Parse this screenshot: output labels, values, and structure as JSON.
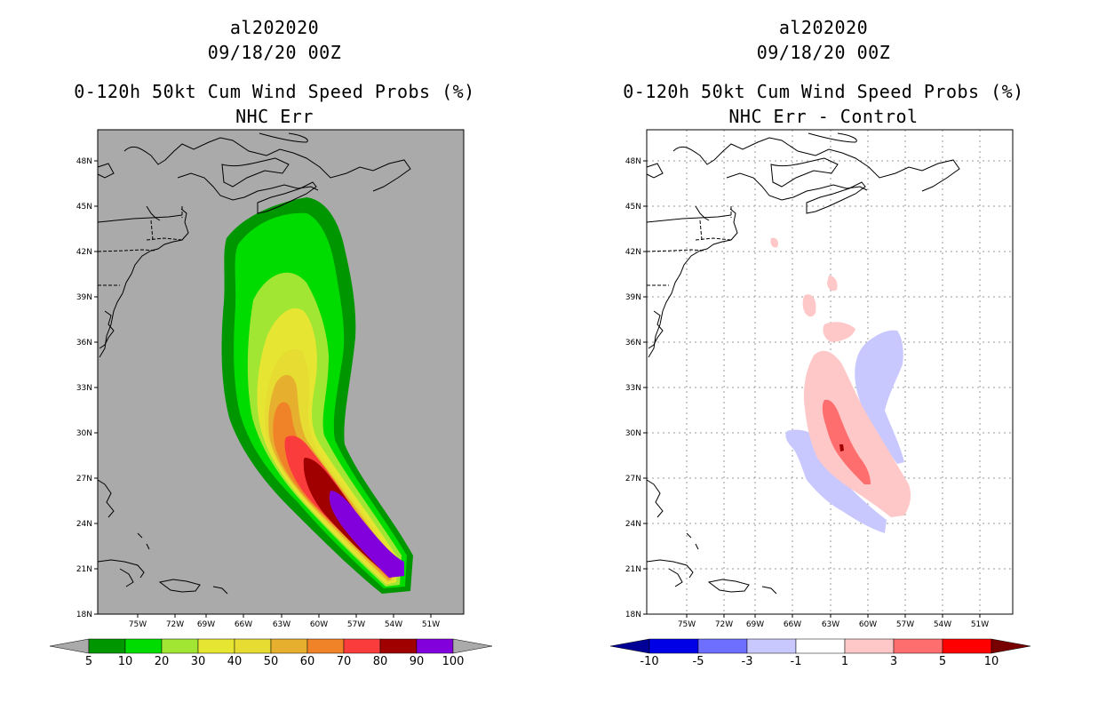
{
  "panels": [
    {
      "id": "left",
      "storm": "al202020",
      "datetime": "09/18/20 00Z",
      "title": "0-120h 50kt Cum Wind Speed Probs (%)",
      "subtitle": "NHC Err",
      "background": "#aaaaaa",
      "lat_labels": [
        "48N",
        "45N",
        "42N",
        "39N",
        "36N",
        "33N",
        "30N",
        "27N",
        "24N",
        "21N",
        "18N"
      ],
      "lon_labels": [
        "75W",
        "72W",
        "69W",
        "66W",
        "63W",
        "60W",
        "57W",
        "54W",
        "51W"
      ],
      "colorbar": {
        "labels": [
          "5",
          "10",
          "20",
          "30",
          "40",
          "50",
          "60",
          "70",
          "80",
          "90",
          "100"
        ],
        "colors": [
          "#009600",
          "#00dc00",
          "#a0e632",
          "#e6e632",
          "#e6dc32",
          "#e6af2d",
          "#f08228",
          "#fa3c3c",
          "#a00000",
          "#8200dc"
        ],
        "end_colors": [
          "#aaaaaa",
          "#aaaaaa"
        ]
      }
    },
    {
      "id": "right",
      "storm": "al202020",
      "datetime": "09/18/20 00Z",
      "title": "0-120h 50kt Cum Wind Speed Probs (%)",
      "subtitle": "NHC Err - Control",
      "background": "#ffffff",
      "lat_labels": [
        "48N",
        "45N",
        "42N",
        "39N",
        "36N",
        "33N",
        "30N",
        "27N",
        "24N",
        "21N",
        "18N"
      ],
      "lon_labels": [
        "75W",
        "72W",
        "69W",
        "66W",
        "63W",
        "60W",
        "57W",
        "54W",
        "51W"
      ],
      "colorbar": {
        "labels": [
          "-10",
          "-5",
          "-3",
          "-1",
          "1",
          "3",
          "5",
          "10"
        ],
        "colors": [
          "#0000e6",
          "#6e6eff",
          "#c8c8ff",
          "#ffffff",
          "#ffc8c8",
          "#ff6e6e",
          "#ff0000"
        ],
        "end_colors": [
          "#000096",
          "#780000"
        ]
      }
    }
  ]
}
